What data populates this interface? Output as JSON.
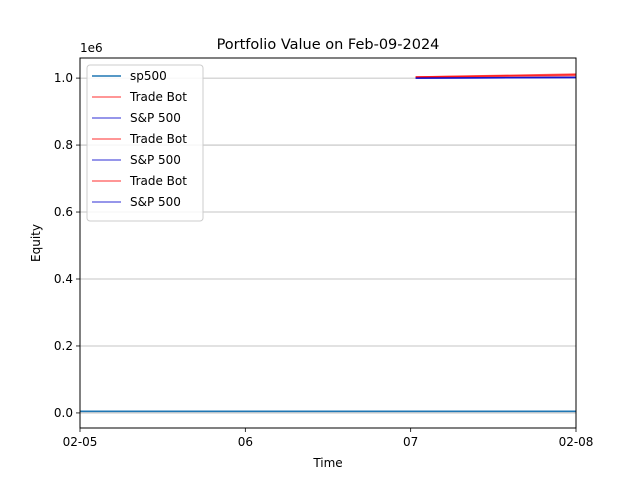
{
  "chart_data": {
    "type": "line",
    "title": "Portfolio Value on Feb-09-2024",
    "xlabel": "Time",
    "ylabel": "Equity",
    "y_offset_label": "1e6",
    "x_ticks": [
      {
        "pos": 0.0,
        "label": "02-05"
      },
      {
        "pos": 1.0,
        "label": "06"
      },
      {
        "pos": 2.0,
        "label": "07"
      },
      {
        "pos": 3.0,
        "label": "02-08"
      }
    ],
    "y_ticks": [
      {
        "value": 0.0,
        "label": "0.0"
      },
      {
        "value": 0.2,
        "label": "0.2"
      },
      {
        "value": 0.4,
        "label": "0.4"
      },
      {
        "value": 0.6,
        "label": "0.6"
      },
      {
        "value": 0.8,
        "label": "0.8"
      },
      {
        "value": 1.0,
        "label": "1.0"
      }
    ],
    "xlim": [
      0,
      3
    ],
    "ylim": [
      -0.045,
      1.06
    ],
    "grid": "horizontal",
    "legend_position": "top-left",
    "series": [
      {
        "name": "sp500",
        "color": "#1f77b4",
        "opacity": 1.0,
        "x": [
          0,
          3
        ],
        "y": [
          0.005,
          0.005
        ]
      },
      {
        "name": "Trade Bot",
        "color": "#ff0000",
        "opacity": 0.55,
        "x": [
          2.03,
          3.0
        ],
        "y": [
          1.003,
          1.012
        ]
      },
      {
        "name": "S&P 500",
        "color": "#0000cc",
        "opacity": 0.55,
        "x": [
          2.03,
          3.0
        ],
        "y": [
          1.0,
          1.002
        ]
      },
      {
        "name": "Trade Bot",
        "color": "#ff0000",
        "opacity": 0.55,
        "x": [
          2.03,
          3.0
        ],
        "y": [
          1.003,
          1.01
        ]
      },
      {
        "name": "S&P 500",
        "color": "#0000cc",
        "opacity": 0.55,
        "x": [
          2.03,
          3.0
        ],
        "y": [
          1.0,
          1.002
        ]
      },
      {
        "name": "Trade Bot",
        "color": "#ff0000",
        "opacity": 0.55,
        "x": [
          2.03,
          3.0
        ],
        "y": [
          1.003,
          1.008
        ]
      },
      {
        "name": "S&P 500",
        "color": "#0000cc",
        "opacity": 0.55,
        "x": [
          2.03,
          3.0
        ],
        "y": [
          1.0,
          1.002
        ]
      }
    ],
    "colors": {
      "grid": "#b0b0b0",
      "axis": "#000000",
      "legend_border": "#cccccc"
    }
  }
}
